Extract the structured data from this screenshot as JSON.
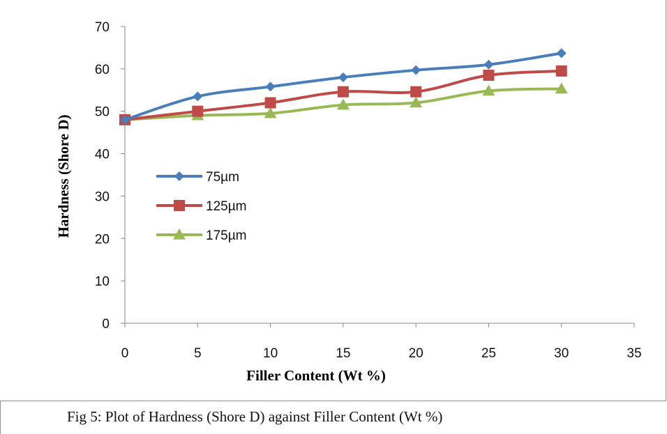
{
  "caption": "Fig  5: Plot of Hardness (Shore D)  against Filler Content (Wt %)",
  "chart_data": {
    "type": "line",
    "title": "",
    "xlabel": "Filler Content (Wt %)",
    "ylabel": "Hardness (Shore D)",
    "xlim": [
      0,
      35
    ],
    "ylim": [
      0,
      70
    ],
    "xticks": [
      0,
      5,
      10,
      15,
      20,
      25,
      30,
      35
    ],
    "yticks": [
      0,
      10,
      20,
      30,
      40,
      50,
      60,
      70
    ],
    "grid": false,
    "legend_position": "left-center",
    "x": [
      0,
      5,
      10,
      15,
      20,
      25,
      30
    ],
    "series": [
      {
        "name": "75µm",
        "marker": "diamond",
        "color": "#4a7ebb",
        "values": [
          48,
          53.5,
          55.8,
          58,
          59.7,
          61,
          63.7
        ]
      },
      {
        "name": "125µm",
        "marker": "square",
        "color": "#be4b48",
        "values": [
          48,
          50,
          52,
          54.6,
          54.6,
          58.5,
          59.5
        ]
      },
      {
        "name": "175µm",
        "marker": "triangle",
        "color": "#98b954",
        "values": [
          48,
          49,
          49.5,
          51.5,
          52,
          54.8,
          55.3
        ]
      }
    ]
  }
}
